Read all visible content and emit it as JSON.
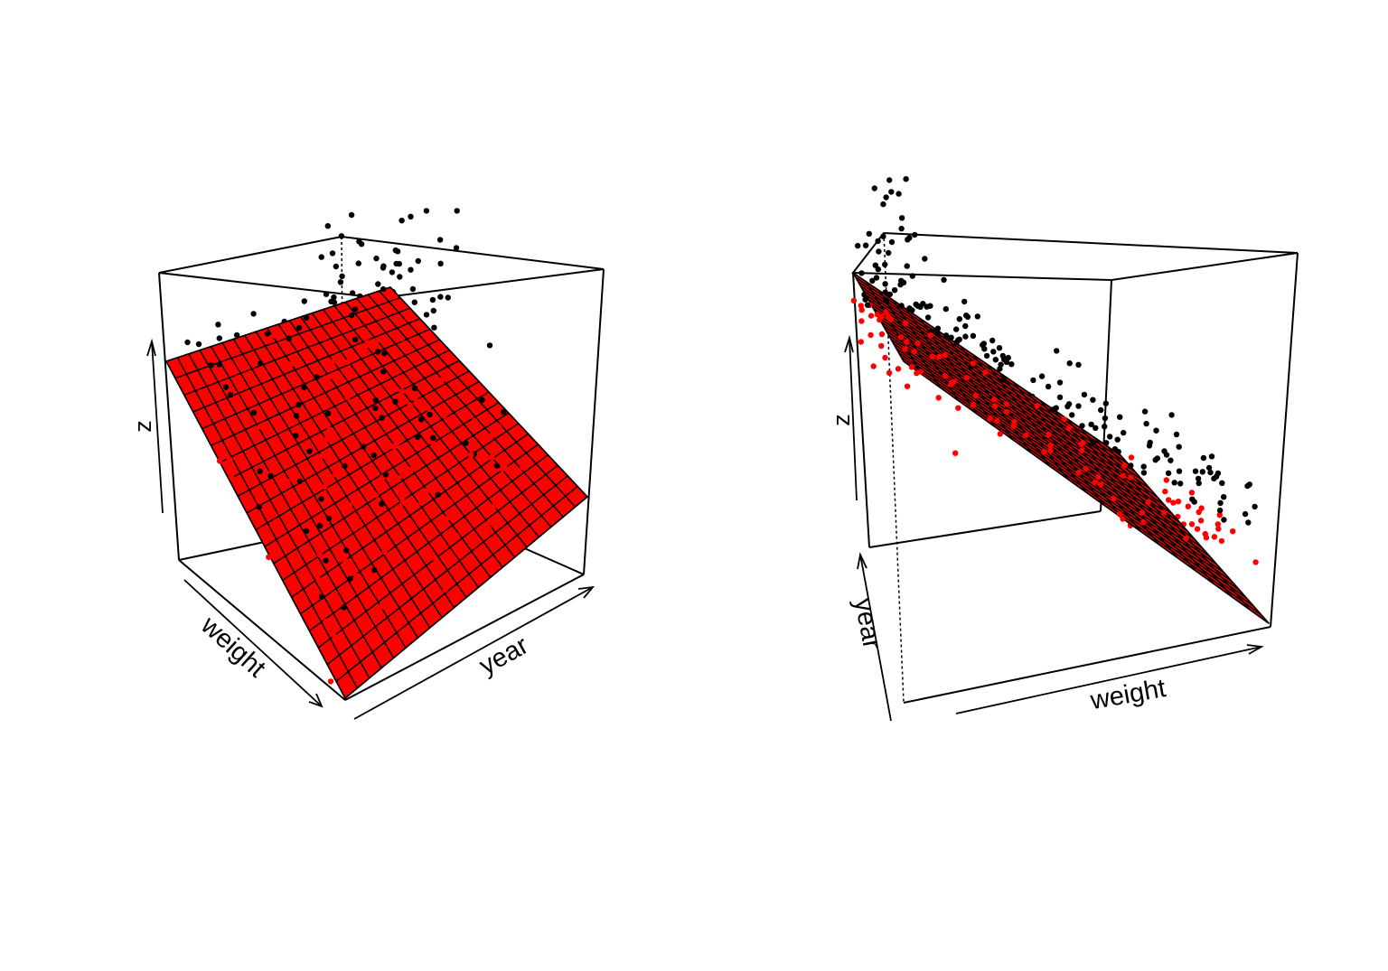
{
  "colors": {
    "plane_fill": "#ff0000",
    "points_above": "#000000",
    "points_below": "#ff0000",
    "box": "#000000",
    "background": "#ffffff"
  },
  "chart_data": [
    {
      "type": "scatter",
      "subtype": "3d-scatter-with-regression-plane",
      "title": "",
      "xlabel": "weight",
      "ylabel": "year",
      "zlabel": "z",
      "view": "weight axis toward viewer-left, year axis toward viewer-right",
      "plane_grid": [
        20,
        20
      ],
      "ticks": "none",
      "series": [
        {
          "name": "",
          "role": "points above fitted plane",
          "color": "#000000"
        },
        {
          "name": "",
          "role": "points below fitted plane",
          "color": "#ff0000"
        }
      ]
    },
    {
      "type": "scatter",
      "subtype": "3d-scatter-with-regression-plane",
      "title": "",
      "xlabel": "weight",
      "ylabel": "year",
      "zlabel": "z",
      "view": "rotated so the fitted plane is seen nearly edge-on",
      "plane_grid": [
        20,
        20
      ],
      "ticks": "none",
      "series": [
        {
          "name": "",
          "role": "points above fitted plane",
          "color": "#000000"
        },
        {
          "name": "",
          "role": "points below fitted plane",
          "color": "#ff0000"
        }
      ]
    }
  ]
}
